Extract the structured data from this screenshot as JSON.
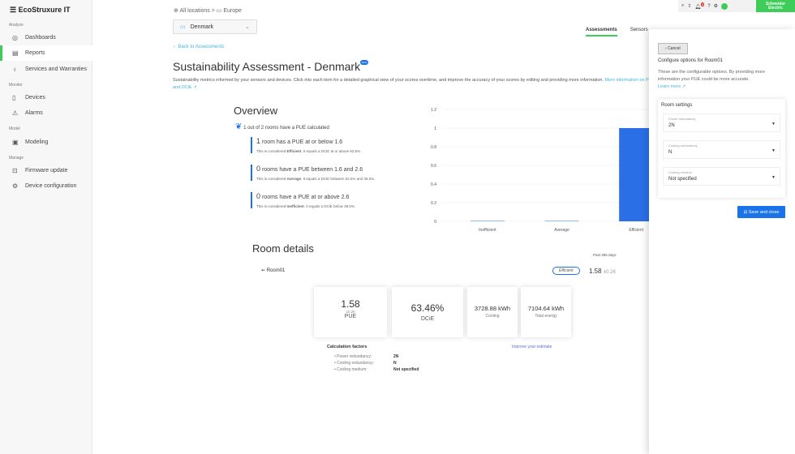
{
  "app": {
    "menu_icon": "hamburger-icon",
    "logo": "EcoStruxure IT"
  },
  "sidebar": {
    "sections": [
      {
        "label": "Analyze",
        "items": [
          {
            "label": "Dashboards",
            "icon": "eye-icon"
          },
          {
            "label": "Reports",
            "icon": "report-icon",
            "active": true
          },
          {
            "label": "Services and Warranties",
            "icon": "services-icon"
          }
        ]
      },
      {
        "label": "Monitor",
        "items": [
          {
            "label": "Devices",
            "icon": "device-icon"
          },
          {
            "label": "Alarms",
            "icon": "warning-icon"
          }
        ]
      },
      {
        "label": "Model",
        "items": [
          {
            "label": "Modeling",
            "icon": "modeling-icon"
          }
        ]
      },
      {
        "label": "Manage",
        "items": [
          {
            "label": "Firmware update",
            "icon": "firmware-icon"
          },
          {
            "label": "Device configuration",
            "icon": "config-icon"
          }
        ]
      }
    ]
  },
  "topbar": {
    "notification_count": "3",
    "brand": "Schneider Electric",
    "accent": "#3dcd58"
  },
  "breadcrumb": [
    "All locations",
    "Europe"
  ],
  "location_select": "Denmark",
  "back_link": "Back to Assessments",
  "tabs": [
    "Assessments",
    "Sensors"
  ],
  "page": {
    "title": "Sustainability Assessment - Denmark",
    "badge": "Beta",
    "description": "Sustainability metrics informed by your sensors and devices. Click into each item for a detailed graphical view of your scores overtime, and improve the accuracy of your scores by editing and providing more information.",
    "info_link": "More information on PUE and DCiE"
  },
  "overview": {
    "title": "Overview",
    "summary": "1 out of 2 rooms have a PUE calculated",
    "stats": [
      {
        "count": "1",
        "text": "room has a PUE at or below 1.6",
        "pre": "This is considered ",
        "cat": "Efficient",
        "post": ". It equals a DCiE at or above 62.5%."
      },
      {
        "count": "0",
        "text": "rooms have a PUE between 1.6 and 2.6",
        "pre": "This is considered ",
        "cat": "Average",
        "post": ". It equals a DCiE between 62.5% and 38.5%."
      },
      {
        "count": "0",
        "text": "rooms have a PUE at or above 2.6",
        "pre": "This is considered ",
        "cat": "Inefficient",
        "post": ". It equals a DCiE below 38.5%."
      }
    ]
  },
  "chart_data": {
    "type": "bar",
    "categories": [
      "Inefficient",
      "Average",
      "Efficient"
    ],
    "values": [
      0,
      0,
      1
    ],
    "ylim": [
      0,
      1.2
    ],
    "yticks": [
      "0",
      "0.2",
      "0.4",
      "0.6",
      "0.8",
      "1",
      "1.2"
    ],
    "grid": true,
    "color": "#2b6fe6"
  },
  "room_details": {
    "title": "Room details",
    "period": "Past 365 days",
    "room": "Room01",
    "status": "Efficient",
    "pue": "1.58",
    "pue_err": "±0.26",
    "cards": {
      "pue_label": "PUE",
      "dcie": "63.46%",
      "dcie_label": "DCiE",
      "cooling": "3728.88 kWh",
      "cooling_label": "Cooling",
      "total": "7104.64 kWh",
      "total_label": "Total energy"
    },
    "factors_title": "Calculation factors",
    "improve_link": "Improve your estimate",
    "factors": [
      {
        "k": "Power redundancy:",
        "v": "2N"
      },
      {
        "k": "Cooling redundancy:",
        "v": "N"
      },
      {
        "k": "Cooling medium:",
        "v": "Not specified"
      }
    ]
  },
  "panel": {
    "cancel": "Cancel",
    "title": "Configure options for Room01",
    "text": "These are the configurable options. By providing more information your PUE could be more accurate.",
    "learn_more": "Learn more",
    "settings_title": "Room settings",
    "fields": [
      {
        "label": "Power redundancy",
        "value": "2N"
      },
      {
        "label": "Cooling redundancy",
        "value": "N"
      },
      {
        "label": "Cooling medium",
        "value": "Not specified"
      }
    ],
    "save": "Save and close"
  }
}
